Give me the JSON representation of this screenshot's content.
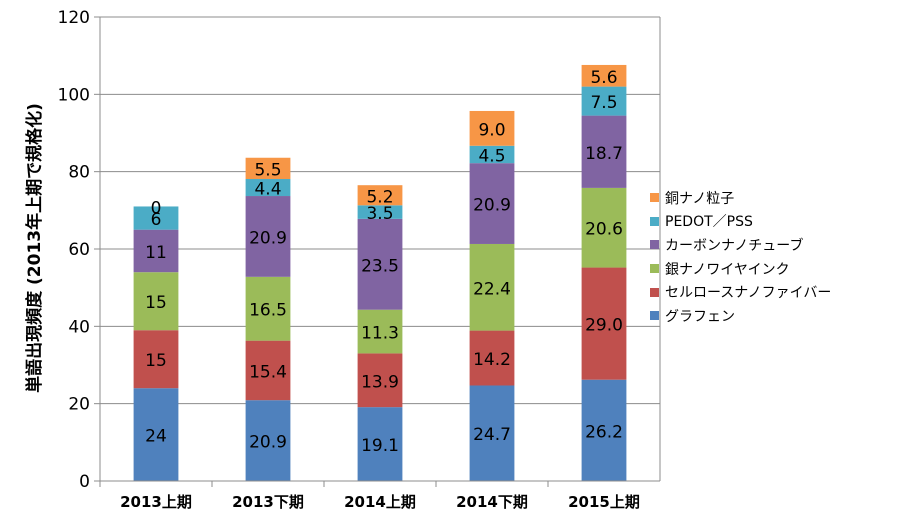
{
  "chart_data": {
    "type": "bar",
    "stacked": true,
    "ylabel": "単語出現頻度 (2013年上期で規格化)",
    "xlabel": "",
    "ylim": [
      0,
      120
    ],
    "ytick_step": 20,
    "yticks": [
      "0",
      "20",
      "40",
      "60",
      "80",
      "100",
      "120"
    ],
    "gridlines": true,
    "legend_position": "right",
    "categories": [
      "2013上期",
      "2013下期",
      "2014上期",
      "2014下期",
      "2015上期"
    ],
    "series": [
      {
        "name": "グラフェン",
        "color": "#4F81BD",
        "values": [
          24,
          20.9,
          19.1,
          24.7,
          26.2
        ],
        "labels": [
          "24",
          "20.9",
          "19.1",
          "24.7",
          "26.2"
        ]
      },
      {
        "name": "セルロースナノファイバー",
        "color": "#C0504D",
        "values": [
          15,
          15.4,
          13.9,
          14.2,
          29.0
        ],
        "labels": [
          "15",
          "15.4",
          "13.9",
          "14.2",
          "29.0"
        ]
      },
      {
        "name": "銀ナノワイヤインク",
        "color": "#9BBB59",
        "values": [
          15,
          16.5,
          11.3,
          22.4,
          20.6
        ],
        "labels": [
          "15",
          "16.5",
          "11.3",
          "22.4",
          "20.6"
        ]
      },
      {
        "name": "カーボンナノチューブ",
        "color": "#8064A2",
        "values": [
          11,
          20.9,
          23.5,
          20.9,
          18.7
        ],
        "labels": [
          "11",
          "20.9",
          "23.5",
          "20.9",
          "18.7"
        ]
      },
      {
        "name": "PEDOT／PSS",
        "color": "#4BACC6",
        "values": [
          6,
          4.4,
          3.5,
          4.5,
          7.5
        ],
        "labels": [
          "6",
          "4.4",
          "3.5",
          "4.5",
          "7.5"
        ]
      },
      {
        "name": "銅ナノ粒子",
        "color": "#F79646",
        "values": [
          0,
          5.5,
          5.2,
          9.0,
          5.6
        ],
        "labels": [
          "0",
          "5.5",
          "5.2",
          "9.0",
          "5.6"
        ]
      }
    ]
  }
}
